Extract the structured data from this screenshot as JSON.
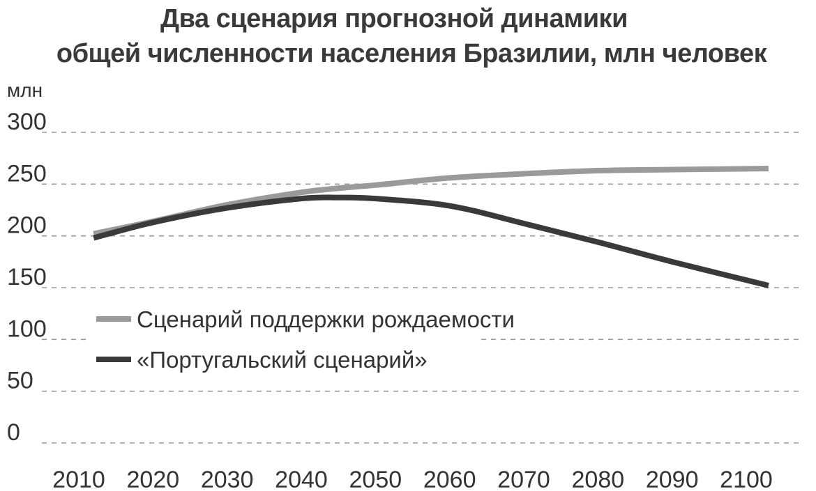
{
  "chart_data": {
    "type": "line",
    "title_line1": "Два сценария прогнозной динамики",
    "title_line2": "общей численности населения Бразилии, млн человек",
    "unit_label": "млн",
    "ylim": [
      0,
      300
    ],
    "yticks": [
      "0",
      "50",
      "100",
      "150",
      "200",
      "250",
      "300"
    ],
    "xticks": [
      "2010",
      "2020",
      "2030",
      "2040",
      "2050",
      "2060",
      "2070",
      "2080",
      "2090",
      "2100"
    ],
    "grid": true,
    "legend_position": "middle-left",
    "x": [
      2012,
      2020,
      2030,
      2040,
      2045,
      2050,
      2060,
      2070,
      2080,
      2090,
      2103
    ],
    "series": [
      {
        "name": "Сценарий поддержки рождаемости",
        "color": "#9a9a9a",
        "values": [
          202,
          214,
          230,
          242,
          246,
          249,
          256,
          260,
          263,
          264,
          265
        ]
      },
      {
        "name": "«Португальский сценарий»",
        "color": "#3a3a3a",
        "values": [
          198,
          213,
          227,
          236,
          237,
          236,
          229,
          212,
          194,
          175,
          152
        ]
      }
    ]
  }
}
